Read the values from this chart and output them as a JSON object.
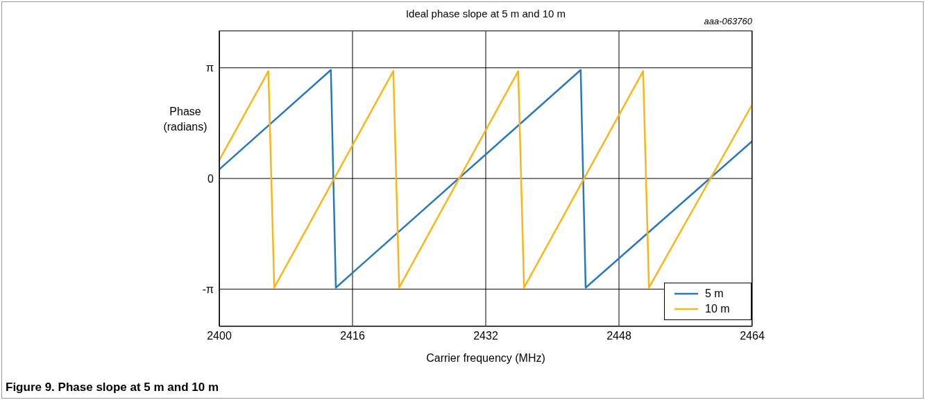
{
  "chart_data": {
    "type": "line",
    "title": "Ideal phase slope at 5 m and 10 m",
    "xlabel": "Carrier frequency (MHz)",
    "ylabel": "Phase (radians)",
    "annotations": [
      "aaa-063760",
      "Figure 9.  Phase slope at 5 m and 10 m"
    ],
    "xlim": [
      2400,
      2464
    ],
    "xticks": [
      2400,
      2416,
      2432,
      2448,
      2464
    ],
    "ylim": [
      -4.2,
      4.2
    ],
    "yticks": [
      {
        "value": -3.1416,
        "label": "-π"
      },
      {
        "value": 0,
        "label": "0"
      },
      {
        "value": 3.1416,
        "label": "π"
      }
    ],
    "grid": true,
    "legend": "bottom right",
    "marker": "none",
    "line_style": "solid",
    "series": [
      {
        "name": "5 m",
        "color": "#2878c0",
        "x": [
          2400,
          2413.4,
          2414.0,
          2443.4,
          2444.0,
          2464
        ],
        "values": [
          0.26,
          3.08,
          -3.1,
          3.08,
          -3.1,
          1.06
        ]
      },
      {
        "name": "10 m",
        "color": "#fbb616",
        "x": [
          2400,
          2405.9,
          2406.6,
          2420.9,
          2421.6,
          2435.9,
          2436.6,
          2450.9,
          2451.6,
          2464
        ],
        "values": [
          0.52,
          3.05,
          -3.1,
          3.05,
          -3.1,
          3.05,
          -3.1,
          3.05,
          -3.1,
          2.1
        ]
      }
    ]
  }
}
